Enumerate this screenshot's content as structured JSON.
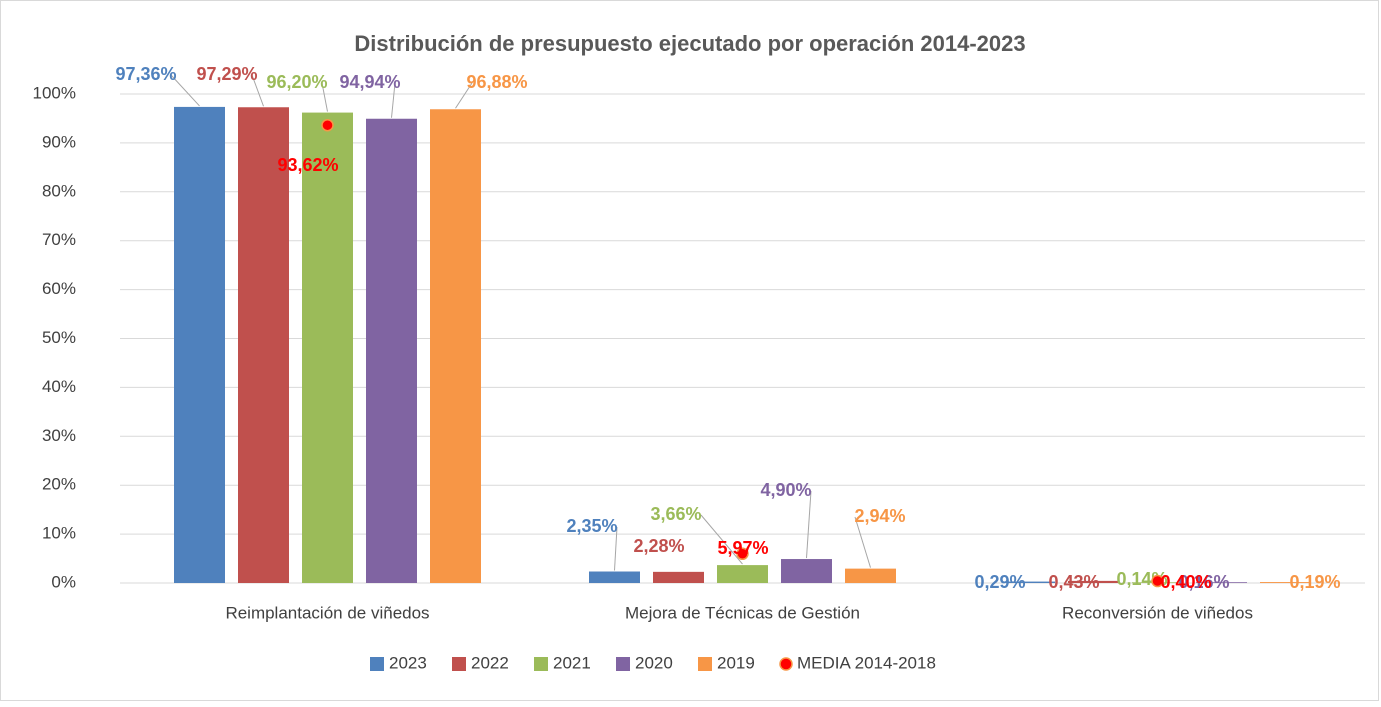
{
  "chart_data": {
    "type": "bar",
    "title": "Distribución de presupuesto ejecutado por operación 2014-2023",
    "categories": [
      "Reimplantación de viñedos",
      "Mejora de Técnicas de Gestión",
      "Reconversión de viñedos"
    ],
    "series": [
      {
        "name": "2023",
        "color": "#4f81bd",
        "values": [
          97.36,
          2.35,
          0.29
        ],
        "value_labels": [
          "97,36%",
          "2,35%",
          "0,29%"
        ]
      },
      {
        "name": "2022",
        "color": "#c0504d",
        "values": [
          97.29,
          2.28,
          0.43
        ],
        "value_labels": [
          "97,29%",
          "2,28%",
          "0,43%"
        ]
      },
      {
        "name": "2021",
        "color": "#9bbb59",
        "values": [
          96.2,
          3.66,
          0.14
        ],
        "value_labels": [
          "96,20%",
          "3,66%",
          "0,14%"
        ]
      },
      {
        "name": "2020",
        "color": "#8064a2",
        "values": [
          94.94,
          4.9,
          0.16
        ],
        "value_labels": [
          "94,94%",
          "4,90%",
          "0,16%"
        ]
      },
      {
        "name": "2019",
        "color": "#f79646",
        "values": [
          96.88,
          2.94,
          0.19
        ],
        "value_labels": [
          "96,88%",
          "2,94%",
          "0,19%"
        ]
      }
    ],
    "marker_series": {
      "name": "MEDIA 2014-2018",
      "color": "#ff0000",
      "values": [
        93.62,
        5.97,
        0.4
      ],
      "value_labels": [
        "93,62%",
        "5,97%",
        "0,40%"
      ]
    },
    "ylim": [
      0,
      100
    ],
    "yticks": [
      {
        "value": 0,
        "label": "0%"
      },
      {
        "value": 10,
        "label": "10%"
      },
      {
        "value": 20,
        "label": "20%"
      },
      {
        "value": 30,
        "label": "30%"
      },
      {
        "value": 40,
        "label": "40%"
      },
      {
        "value": 50,
        "label": "50%"
      },
      {
        "value": 60,
        "label": "60%"
      },
      {
        "value": 70,
        "label": "70%"
      },
      {
        "value": 80,
        "label": "80%"
      },
      {
        "value": 90,
        "label": "90%"
      },
      {
        "value": 100,
        "label": "100%"
      }
    ],
    "grid": true,
    "legend": "bottom"
  }
}
